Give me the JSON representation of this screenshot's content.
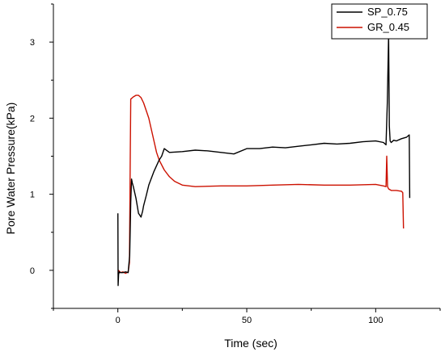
{
  "chart_data": {
    "type": "line",
    "title": "",
    "xlabel": "Time (sec)",
    "ylabel": "Pore Water Pressure(kPa)",
    "xlim": [
      -25,
      125
    ],
    "ylim": [
      -0.5,
      3.5
    ],
    "x_ticks": [
      0,
      50,
      100
    ],
    "y_ticks": [
      0,
      1,
      2,
      3
    ],
    "grid": false,
    "legend": {
      "placement": "top-right",
      "entries": [
        "SP_0.75",
        "GR_0.45"
      ]
    },
    "colors": {
      "SP_0.75": "#000000",
      "GR_0.45": "#cc1100"
    },
    "series": [
      {
        "name": "SP_0.75",
        "x": [
          0,
          0.1,
          0.3,
          0.6,
          1,
          2,
          3,
          4,
          4.6,
          5,
          5.3,
          5.6,
          6,
          7,
          8,
          9,
          9.6,
          10,
          11,
          12,
          14,
          16,
          17,
          18,
          20,
          25,
          30,
          35,
          40,
          45,
          50,
          55,
          60,
          65,
          70,
          75,
          80,
          85,
          90,
          95,
          100,
          103,
          104,
          104.5,
          105,
          105.3,
          105.6,
          106,
          107,
          108,
          110,
          112,
          113,
          113.2
        ],
        "y": [
          0.75,
          -0.2,
          -0.05,
          -0.02,
          -0.03,
          -0.03,
          -0.02,
          -0.03,
          0.2,
          0.9,
          1.2,
          1.15,
          1.1,
          0.95,
          0.75,
          0.7,
          0.78,
          0.85,
          0.98,
          1.12,
          1.3,
          1.45,
          1.5,
          1.6,
          1.55,
          1.56,
          1.58,
          1.57,
          1.55,
          1.53,
          1.6,
          1.6,
          1.62,
          1.61,
          1.63,
          1.65,
          1.67,
          1.66,
          1.67,
          1.69,
          1.7,
          1.68,
          1.65,
          2.2,
          3.1,
          1.9,
          1.7,
          1.68,
          1.71,
          1.7,
          1.73,
          1.75,
          1.78,
          0.95
        ]
      },
      {
        "name": "GR_0.45",
        "x": [
          0,
          0.1,
          0.3,
          1,
          2,
          3,
          4,
          4.5,
          4.8,
          5,
          6,
          7,
          8,
          9,
          10,
          11,
          12,
          13,
          14,
          15,
          16,
          18,
          20,
          22,
          25,
          30,
          40,
          50,
          60,
          70,
          80,
          90,
          100,
          103,
          104,
          104.3,
          104.6,
          105,
          106,
          108,
          110,
          110.5,
          110.8
        ],
        "y": [
          -0.05,
          -0.05,
          0.0,
          -0.03,
          -0.02,
          -0.04,
          -0.02,
          0.1,
          1.5,
          2.25,
          2.28,
          2.3,
          2.3,
          2.27,
          2.2,
          2.1,
          2.0,
          1.85,
          1.7,
          1.55,
          1.45,
          1.32,
          1.23,
          1.17,
          1.12,
          1.1,
          1.11,
          1.11,
          1.12,
          1.13,
          1.12,
          1.12,
          1.13,
          1.11,
          1.1,
          1.5,
          1.1,
          1.07,
          1.05,
          1.05,
          1.04,
          1.02,
          0.55
        ]
      }
    ]
  }
}
